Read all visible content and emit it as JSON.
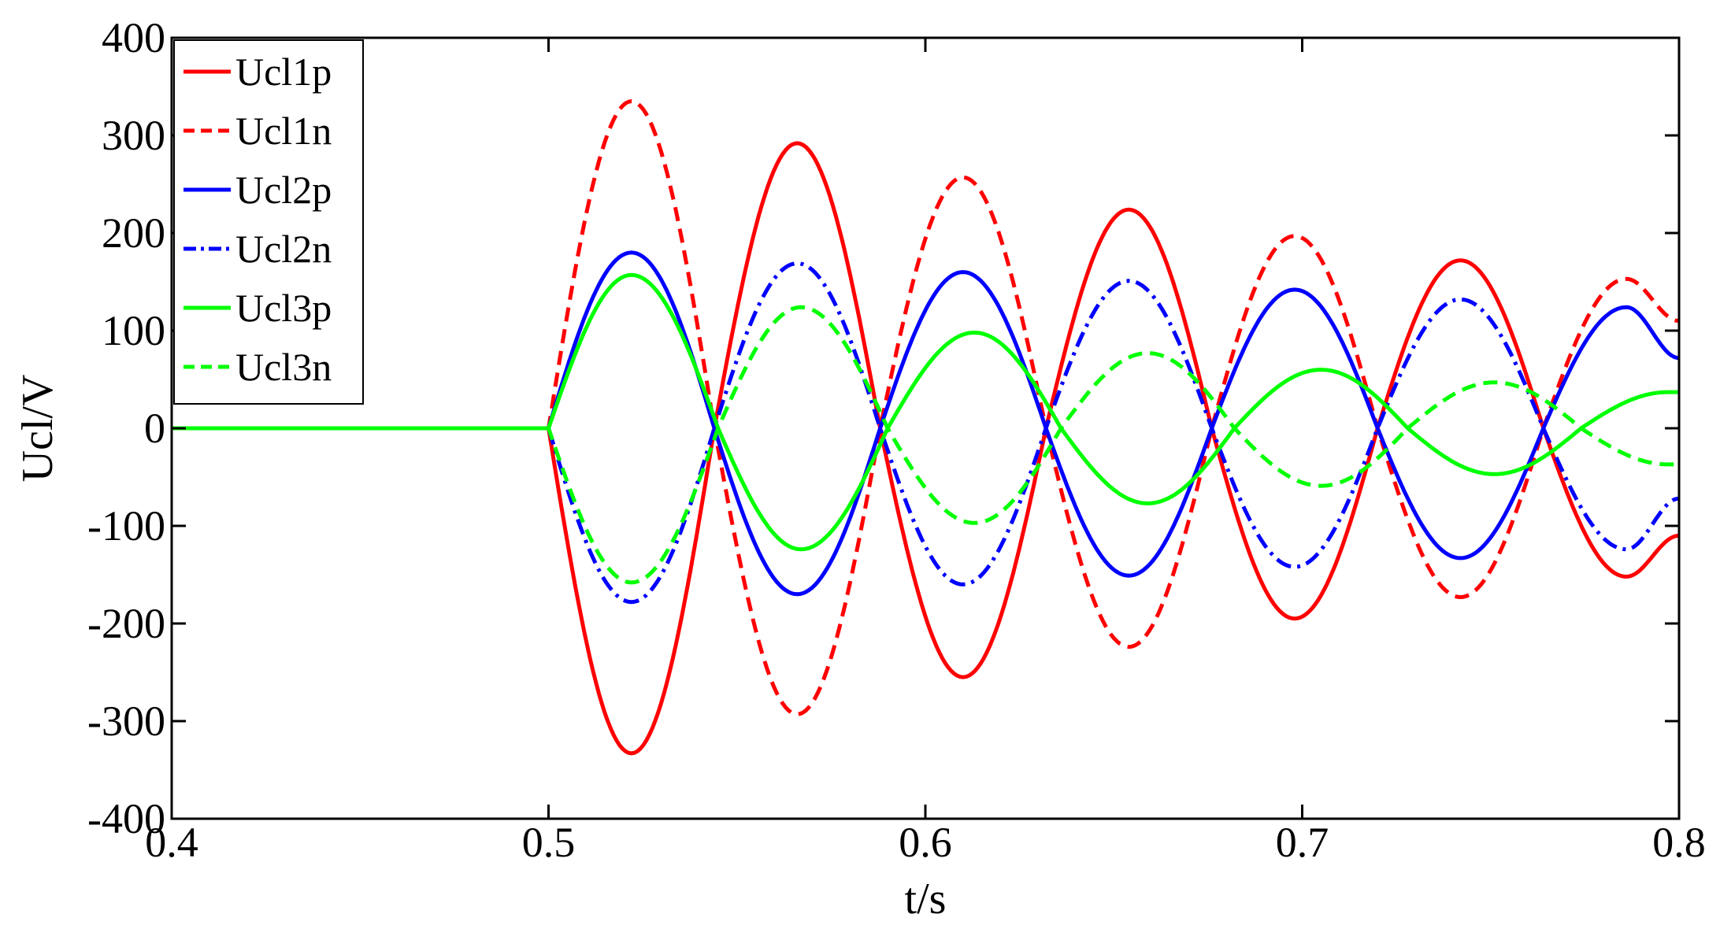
{
  "chart_data": {
    "type": "line",
    "title": "",
    "xlabel": "t/s",
    "ylabel": "Ucl/V",
    "xlim": [
      0.4,
      0.8
    ],
    "ylim": [
      -400,
      400
    ],
    "xticks": [
      0.4,
      0.5,
      0.6,
      0.7,
      0.8
    ],
    "xtick_labels": [
      "0.4",
      "0.5",
      "0.6",
      "0.7",
      "0.8"
    ],
    "yticks": [
      400,
      300,
      200,
      100,
      0,
      -100,
      -200,
      -300,
      -400
    ],
    "ytick_labels": [
      "400",
      "300",
      "200",
      "100",
      "0",
      "-100",
      "-200",
      "-300",
      "-400"
    ],
    "grid": false,
    "legend_position": "top-left",
    "series": [
      {
        "name": "Ucl1p",
        "color": "#ff0000",
        "style": "solid",
        "x": [
          0.4,
          0.5,
          0.522,
          0.544,
          0.566,
          0.588,
          0.61,
          0.632,
          0.654,
          0.676,
          0.698,
          0.72,
          0.742,
          0.764,
          0.786,
          0.8
        ],
        "y": [
          0,
          0,
          -333,
          0,
          292,
          0,
          -255,
          0,
          224,
          0,
          -195,
          0,
          172,
          0,
          -152,
          -110
        ]
      },
      {
        "name": "Ucl1n",
        "color": "#ff0000",
        "style": "dashed",
        "x": [
          0.4,
          0.5,
          0.522,
          0.544,
          0.566,
          0.588,
          0.61,
          0.632,
          0.654,
          0.676,
          0.698,
          0.72,
          0.742,
          0.764,
          0.786,
          0.8
        ],
        "y": [
          0,
          0,
          335,
          0,
          -293,
          0,
          257,
          0,
          -224,
          0,
          197,
          0,
          -173,
          0,
          153,
          110
        ]
      },
      {
        "name": "Ucl2p",
        "color": "#0000ff",
        "style": "solid",
        "x": [
          0.4,
          0.5,
          0.522,
          0.544,
          0.566,
          0.588,
          0.61,
          0.632,
          0.654,
          0.676,
          0.698,
          0.72,
          0.742,
          0.764,
          0.786,
          0.8
        ],
        "y": [
          0,
          0,
          180,
          0,
          -170,
          0,
          160,
          0,
          -151,
          0,
          142,
          0,
          -133,
          0,
          124,
          72
        ]
      },
      {
        "name": "Ucl2n",
        "color": "#0000ff",
        "style": "dashdot",
        "x": [
          0.4,
          0.5,
          0.522,
          0.544,
          0.566,
          0.588,
          0.61,
          0.632,
          0.654,
          0.676,
          0.698,
          0.72,
          0.742,
          0.764,
          0.786,
          0.8
        ],
        "y": [
          0,
          0,
          -178,
          0,
          169,
          0,
          -160,
          0,
          151,
          0,
          -142,
          0,
          132,
          0,
          -124,
          -72
        ]
      },
      {
        "name": "Ucl3p",
        "color": "#00ff00",
        "style": "solid",
        "x": [
          0.4,
          0.5,
          0.522,
          0.545,
          0.567,
          0.59,
          0.613,
          0.636,
          0.659,
          0.682,
          0.705,
          0.728,
          0.751,
          0.774,
          0.797,
          0.8
        ],
        "y": [
          0,
          0,
          157,
          0,
          -124,
          0,
          98,
          0,
          -77,
          0,
          60,
          0,
          -47,
          0,
          37,
          37
        ]
      },
      {
        "name": "Ucl3n",
        "color": "#00ff00",
        "style": "dashed",
        "x": [
          0.4,
          0.5,
          0.522,
          0.545,
          0.567,
          0.59,
          0.613,
          0.636,
          0.659,
          0.682,
          0.705,
          0.728,
          0.751,
          0.774,
          0.797,
          0.8
        ],
        "y": [
          0,
          0,
          -158,
          0,
          124,
          0,
          -97,
          0,
          77,
          0,
          -59,
          0,
          47,
          0,
          -37,
          -37
        ]
      }
    ]
  }
}
